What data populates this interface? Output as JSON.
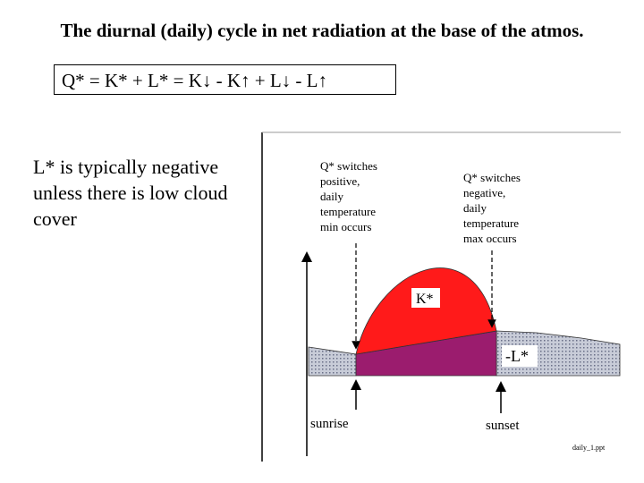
{
  "title": "The diurnal (daily) cycle in net radiation at the base of the atmos.",
  "equation": "Q* = K* + L* = K↓ - K↑  +  L↓ - L↑",
  "note": "L* is typically negative unless there is low cloud cover",
  "diagram": {
    "q_positive": [
      "Q* switches",
      "positive,",
      "daily",
      "temperature",
      "min occurs"
    ],
    "q_negative": [
      "Q* switches",
      "negative,",
      "daily",
      "temperature",
      "max occurs"
    ],
    "k_star": "K*",
    "l_star": "-L*",
    "sunrise": "sunrise",
    "sunset": "sunset",
    "file": "daily_1.ppt"
  }
}
